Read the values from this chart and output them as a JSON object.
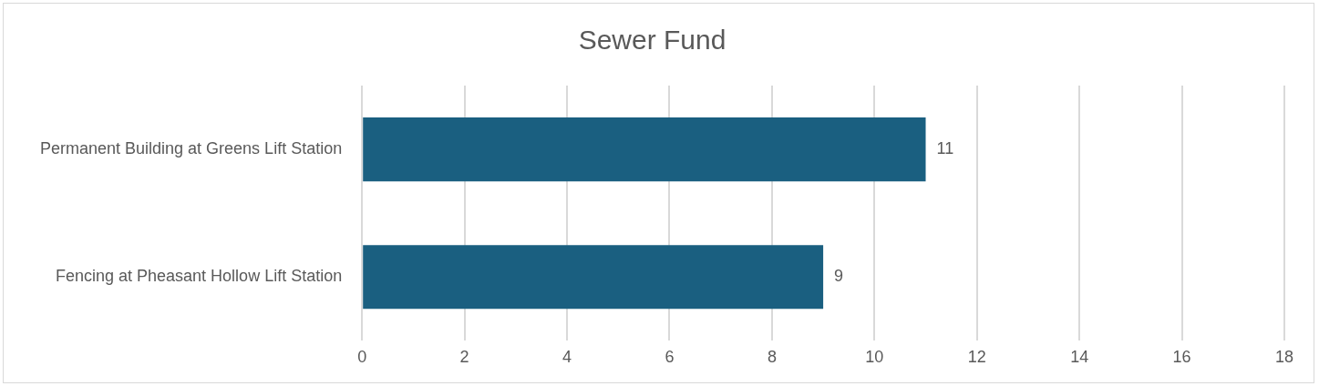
{
  "chart_data": {
    "type": "bar",
    "title": "Sewer Fund",
    "orientation": "horizontal",
    "categories": [
      "Permanent Building at Greens Lift Station",
      "Fencing at Pheasant Hollow Lift Station"
    ],
    "values": [
      11,
      9
    ],
    "color": "#1a5f80",
    "xlim": [
      0,
      18
    ],
    "xticks": [
      0,
      2,
      4,
      6,
      8,
      10,
      12,
      14,
      16,
      18
    ],
    "grid": "x",
    "data_labels": true
  }
}
